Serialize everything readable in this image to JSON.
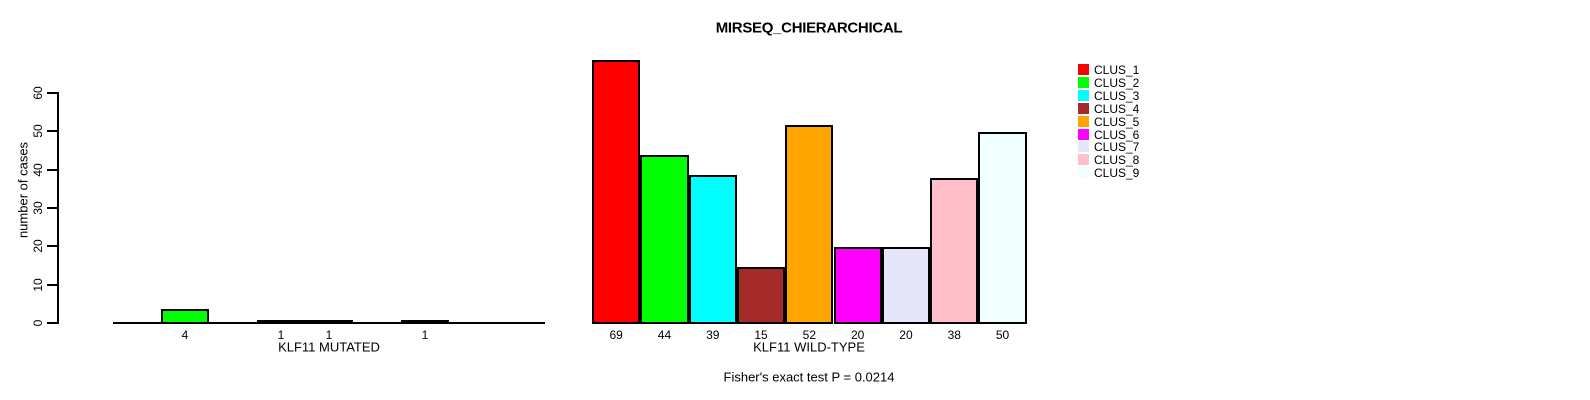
{
  "chart_data": {
    "type": "bar",
    "title": "MIRSEQ_CHIERARCHICAL",
    "ylabel": "number of cases",
    "yticks": [
      0,
      10,
      20,
      30,
      40,
      50,
      60
    ],
    "ylim": [
      0,
      60
    ],
    "grid": false,
    "legend_position": "top-right",
    "bar_border_color": "#000000",
    "background_color": "#ffffff",
    "clusters": [
      {
        "label": "CLUS_1",
        "color": "#ff0000"
      },
      {
        "label": "CLUS_2",
        "color": "#00ff00"
      },
      {
        "label": "CLUS_3",
        "color": "#00ffff"
      },
      {
        "label": "CLUS_4",
        "color": "#a52a2a"
      },
      {
        "label": "CLUS_5",
        "color": "#ffa500"
      },
      {
        "label": "CLUS_6",
        "color": "#ff00ff"
      },
      {
        "label": "CLUS_7",
        "color": "#e6e6fa"
      },
      {
        "label": "CLUS_8",
        "color": "#ffc0cb"
      },
      {
        "label": "CLUS_9",
        "color": "#f0ffff"
      }
    ],
    "panels": [
      {
        "xlabel": "KLF11 MUTATED",
        "values": [
          0,
          4,
          0,
          1,
          1,
          0,
          1,
          0,
          0
        ],
        "visible_bar_labels": [
          "4",
          "1",
          "1",
          "1"
        ]
      },
      {
        "xlabel": "KLF11 WILD-TYPE",
        "values": [
          69,
          44,
          39,
          15,
          52,
          20,
          20,
          38,
          50
        ],
        "visible_bar_labels": [
          "69",
          "44",
          "39",
          "15",
          "52",
          "20",
          "20",
          "38",
          "50"
        ]
      }
    ],
    "annotation": "Fisher's exact test P = 0.0214"
  }
}
